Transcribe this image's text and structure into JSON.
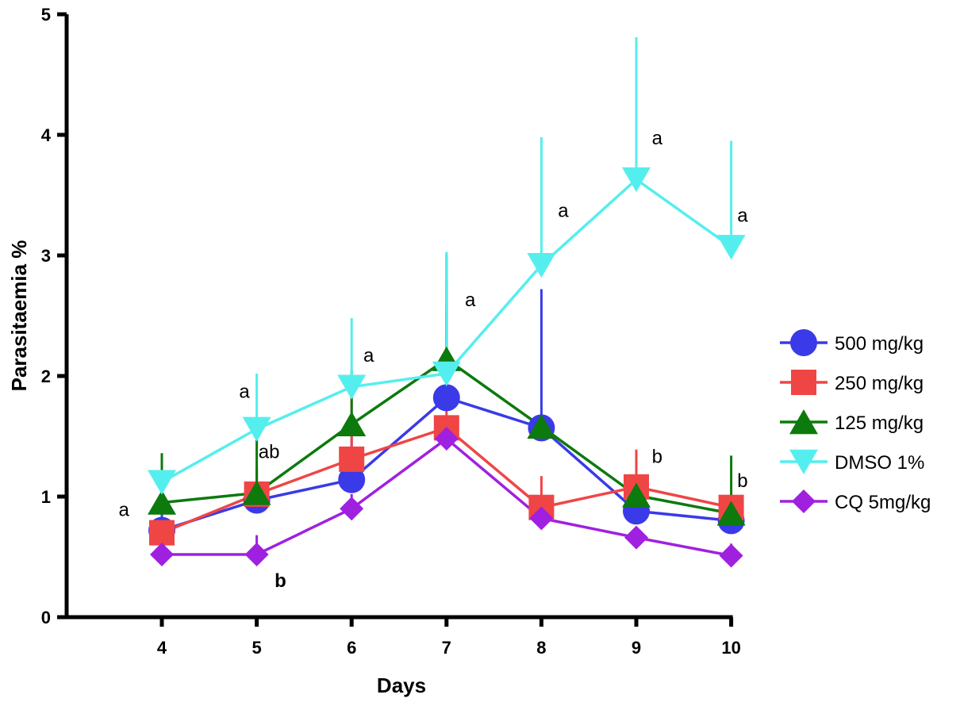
{
  "chart_data": {
    "type": "line",
    "title": "",
    "xlabel": "Days",
    "ylabel": "Parasitaemia %",
    "x": [
      4,
      5,
      6,
      7,
      8,
      9,
      10
    ],
    "xlim": [
      3,
      10
    ],
    "ylim": [
      0,
      5
    ],
    "yticks": [
      0,
      1,
      2,
      3,
      4,
      5
    ],
    "xticks": [
      4,
      5,
      6,
      7,
      8,
      9,
      10
    ],
    "grid": false,
    "legend_position": "right",
    "series": [
      {
        "name": "500 mg/kg",
        "color": "#3a3ae8",
        "marker": "circle",
        "values": [
          0.72,
          0.97,
          1.14,
          1.82,
          1.57,
          0.88,
          0.8
        ],
        "error": [
          0.2,
          0.28,
          0.5,
          0.72,
          1.15,
          0.15,
          0.1
        ]
      },
      {
        "name": "250 mg/kg",
        "color": "#f04545",
        "marker": "square",
        "values": [
          0.7,
          1.02,
          1.31,
          1.57,
          0.91,
          1.08,
          0.91
        ],
        "error": [
          0.1,
          0.2,
          0.55,
          1.22,
          0.26,
          0.31,
          0.12
        ]
      },
      {
        "name": "125 mg/kg",
        "color": "#0c7a0c",
        "marker": "triangle-up",
        "values": [
          0.95,
          1.03,
          1.6,
          2.14,
          1.58,
          1.01,
          0.86
        ],
        "error": [
          0.41,
          0.47,
          0.45,
          0.87,
          0.05,
          0.05,
          0.48
        ]
      },
      {
        "name": "DMSO 1%",
        "color": "#55eeee",
        "marker": "triangle-down",
        "values": [
          1.12,
          1.56,
          1.91,
          2.02,
          2.92,
          3.63,
          3.07
        ],
        "error": [
          0.1,
          0.46,
          0.57,
          1.01,
          1.06,
          1.18,
          0.88
        ]
      },
      {
        "name": "CQ 5mg/kg",
        "color": "#a020e0",
        "marker": "diamond",
        "values": [
          0.52,
          0.52,
          0.9,
          1.48,
          0.82,
          0.66,
          0.51
        ],
        "error": [
          0.05,
          0.16,
          0.12,
          0.05,
          0.05,
          0.05,
          0.1
        ]
      }
    ],
    "annotations": [
      {
        "text": "a",
        "x": 3.6,
        "y": 0.84,
        "bold": false
      },
      {
        "text": "a",
        "x": 4.87,
        "y": 1.82,
        "bold": false
      },
      {
        "text": "ab",
        "x": 5.13,
        "y": 1.32,
        "bold": false
      },
      {
        "text": "b",
        "x": 5.25,
        "y": 0.25,
        "bold": true
      },
      {
        "text": "a",
        "x": 6.18,
        "y": 2.12,
        "bold": false
      },
      {
        "text": "a",
        "x": 7.25,
        "y": 2.58,
        "bold": false
      },
      {
        "text": "a",
        "x": 8.23,
        "y": 3.32,
        "bold": false
      },
      {
        "text": "a",
        "x": 9.22,
        "y": 3.92,
        "bold": false
      },
      {
        "text": "b",
        "x": 9.22,
        "y": 1.28,
        "bold": false
      },
      {
        "text": "a",
        "x": 10.12,
        "y": 3.28,
        "bold": false
      },
      {
        "text": "b",
        "x": 10.12,
        "y": 1.08,
        "bold": false
      }
    ]
  }
}
